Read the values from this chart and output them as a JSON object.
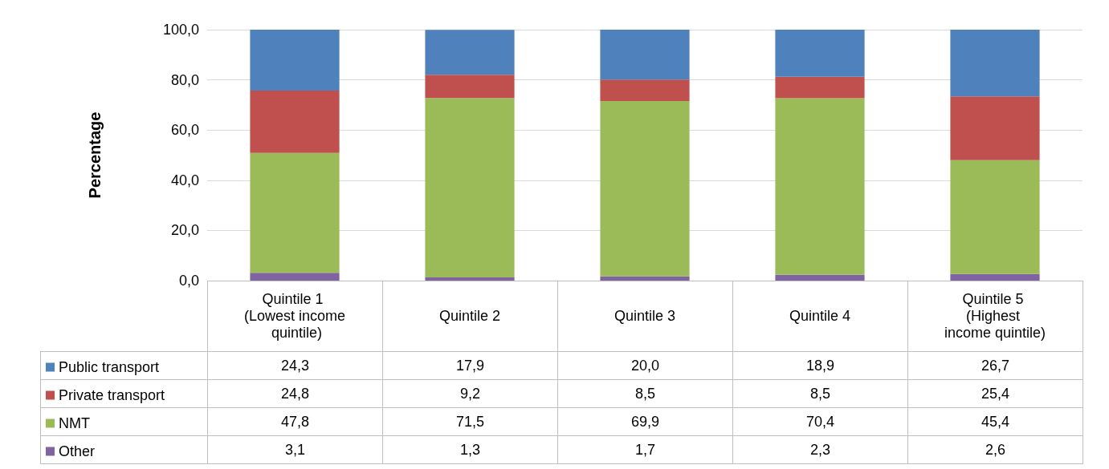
{
  "chart_data": {
    "type": "bar",
    "stacked": true,
    "ylabel": "Percentage",
    "categories": [
      "Quintile 1 (Lowest income quintile)",
      "Quintile 2",
      "Quintile 3",
      "Quintile 4",
      "Quintile 5 (Highest income quintile)"
    ],
    "series": [
      {
        "name": "Other",
        "color": "#8064a2",
        "values": [
          3.1,
          1.3,
          1.7,
          2.3,
          2.6
        ],
        "value_labels": [
          "3,1",
          "1,3",
          "1,7",
          "2,3",
          "2,6"
        ]
      },
      {
        "name": "NMT",
        "color": "#9bbb59",
        "values": [
          47.8,
          71.5,
          69.9,
          70.4,
          45.4
        ],
        "value_labels": [
          "47,8",
          "71,5",
          "69,9",
          "70,4",
          "45,4"
        ]
      },
      {
        "name": "Private transport",
        "color": "#c0504d",
        "values": [
          24.8,
          9.2,
          8.5,
          8.5,
          25.4
        ],
        "value_labels": [
          "24,8",
          "9,2",
          "8,5",
          "8,5",
          "25,4"
        ]
      },
      {
        "name": "Public transport",
        "color": "#4f81bd",
        "values": [
          24.3,
          17.9,
          20.0,
          18.9,
          26.7
        ],
        "value_labels": [
          "24,3",
          "17,9",
          "20,0",
          "18,9",
          "26,7"
        ]
      }
    ],
    "ylim": [
      0,
      100
    ],
    "yticks": [
      {
        "value": 0,
        "label": "0,0"
      },
      {
        "value": 20,
        "label": "20,0"
      },
      {
        "value": 40,
        "label": "40,0"
      },
      {
        "value": 60,
        "label": "60,0"
      },
      {
        "value": 80,
        "label": "80,0"
      },
      {
        "value": 100,
        "label": "100,0"
      }
    ],
    "grid": "y",
    "legend": "bottom left"
  }
}
